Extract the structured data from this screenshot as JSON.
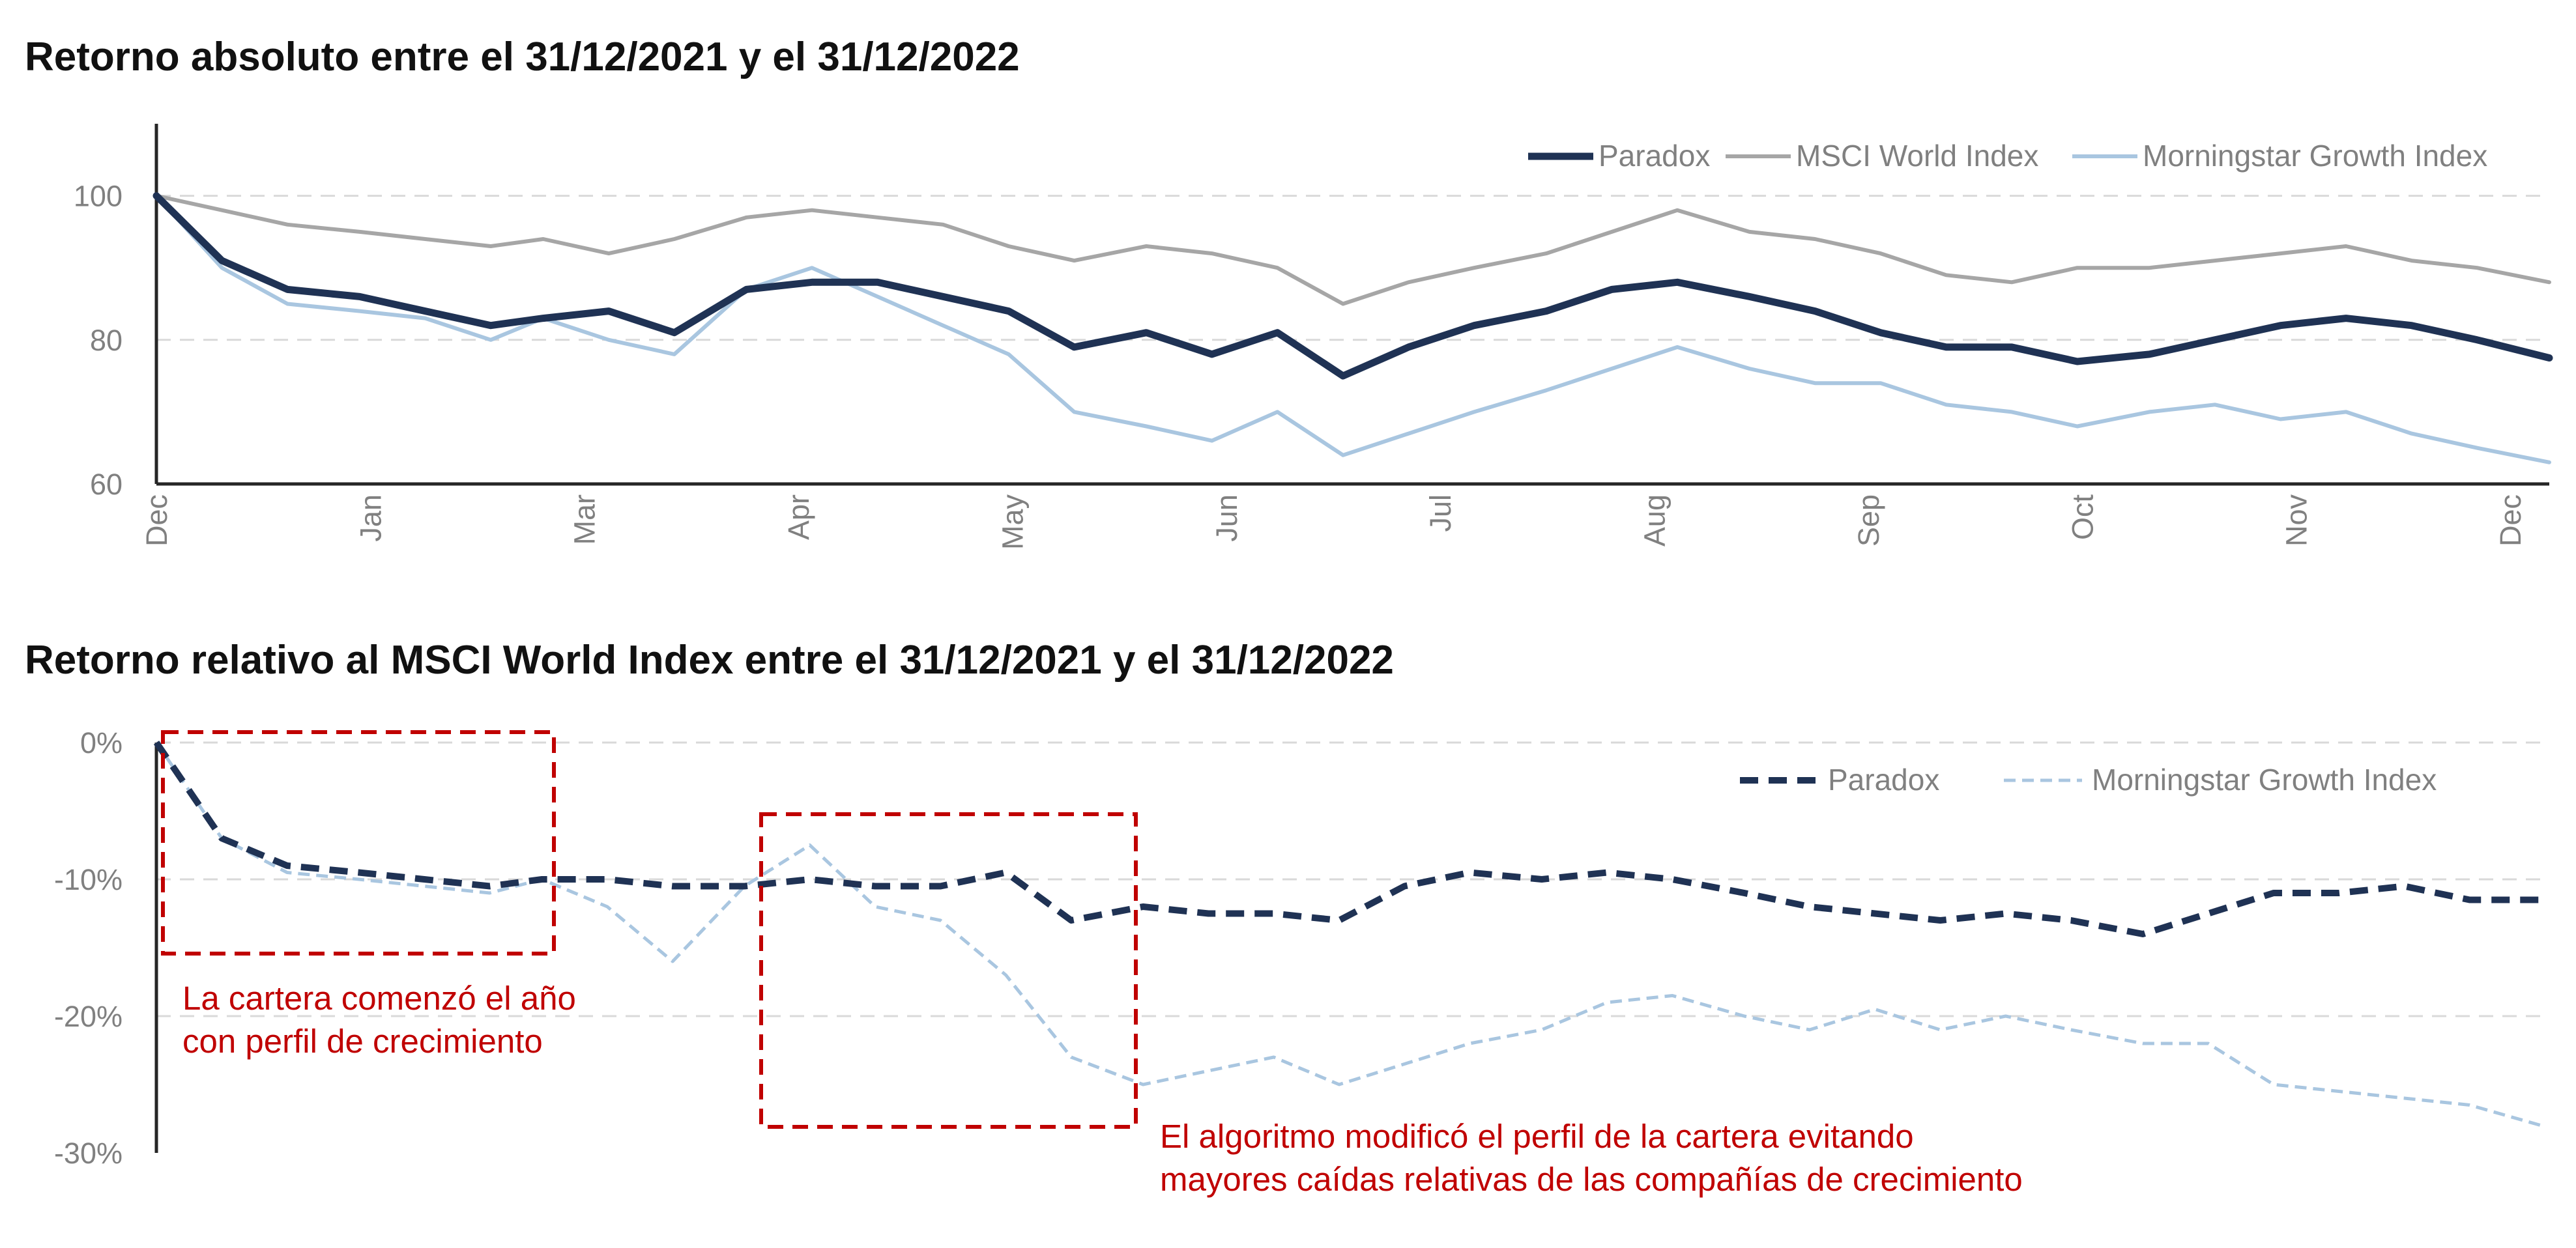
{
  "chart_data": [
    {
      "type": "line",
      "title": "Retorno absoluto entre el 31/12/2021 y el 31/12/2022",
      "xlabel": "",
      "ylabel": "",
      "x_tick_labels": [
        "Dec",
        "Jan",
        "Mar",
        "Apr",
        "May",
        "Jun",
        "Jul",
        "Aug",
        "Sep",
        "Oct",
        "Nov",
        "Dec"
      ],
      "y_ticks": [
        "60",
        "80",
        "100"
      ],
      "ylim": [
        60,
        110
      ],
      "grid": "horizontal dashed",
      "legend_position": "top-right",
      "x": [
        "2021-12-31",
        "2022-01-10",
        "2022-01-20",
        "2022-01-31",
        "2022-02-10",
        "2022-02-20",
        "2022-02-28",
        "2022-03-10",
        "2022-03-20",
        "2022-03-31",
        "2022-04-10",
        "2022-04-20",
        "2022-04-30",
        "2022-05-10",
        "2022-05-20",
        "2022-05-31",
        "2022-06-10",
        "2022-06-20",
        "2022-06-30",
        "2022-07-10",
        "2022-07-20",
        "2022-07-31",
        "2022-08-10",
        "2022-08-20",
        "2022-08-31",
        "2022-09-10",
        "2022-09-20",
        "2022-09-30",
        "2022-10-10",
        "2022-10-20",
        "2022-10-31",
        "2022-11-10",
        "2022-11-20",
        "2022-11-30",
        "2022-12-10",
        "2022-12-20",
        "2022-12-31"
      ],
      "series": [
        {
          "name": "Paradox",
          "color": "#1f3254",
          "style": "solid-thick",
          "values": [
            100,
            91,
            87,
            86,
            84,
            82,
            83,
            84,
            81,
            87,
            88,
            88,
            86,
            84,
            79,
            81,
            78,
            81,
            75,
            79,
            82,
            84,
            87,
            88,
            86,
            84,
            81,
            79,
            79,
            77,
            78,
            80,
            82,
            83,
            82,
            80,
            77.5
          ]
        },
        {
          "name": "MSCI World Index",
          "color": "#a6a6a6",
          "style": "solid",
          "values": [
            100,
            98,
            96,
            95,
            94,
            93,
            94,
            92,
            94,
            97,
            98,
            97,
            96,
            93,
            91,
            93,
            92,
            90,
            85,
            88,
            90,
            92,
            95,
            98,
            95,
            94,
            92,
            89,
            88,
            90,
            90,
            91,
            92,
            93,
            91,
            90,
            88
          ]
        },
        {
          "name": "Morningstar Growth Index",
          "color": "#a9c6e0",
          "style": "solid",
          "values": [
            100,
            90,
            85,
            84,
            83,
            80,
            83,
            80,
            78,
            87,
            90,
            86,
            82,
            78,
            70,
            68,
            66,
            70,
            64,
            67,
            70,
            73,
            76,
            79,
            76,
            74,
            74,
            71,
            70,
            68,
            70,
            71,
            69,
            70,
            67,
            65,
            63
          ]
        }
      ]
    },
    {
      "type": "line",
      "title": "Retorno relativo al MSCI World Index entre el 31/12/2021 y el 31/12/2022",
      "xlabel": "",
      "ylabel": "",
      "y_ticks": [
        "0%",
        "-10%",
        "-20%",
        "-30%"
      ],
      "ylim": [
        -30,
        0
      ],
      "grid": "horizontal dashed",
      "legend_position": "top-right",
      "x": [
        "2021-12-31",
        "2022-01-10",
        "2022-01-20",
        "2022-01-31",
        "2022-02-10",
        "2022-02-20",
        "2022-02-28",
        "2022-03-10",
        "2022-03-20",
        "2022-03-31",
        "2022-04-10",
        "2022-04-20",
        "2022-04-30",
        "2022-05-10",
        "2022-05-20",
        "2022-05-31",
        "2022-06-10",
        "2022-06-20",
        "2022-06-30",
        "2022-07-10",
        "2022-07-20",
        "2022-07-31",
        "2022-08-10",
        "2022-08-20",
        "2022-08-31",
        "2022-09-10",
        "2022-09-20",
        "2022-09-30",
        "2022-10-10",
        "2022-10-20",
        "2022-10-31",
        "2022-11-10",
        "2022-11-20",
        "2022-11-30",
        "2022-12-10",
        "2022-12-20",
        "2022-12-31"
      ],
      "series": [
        {
          "name": "Paradox",
          "color": "#1f3254",
          "style": "dashed-thick",
          "values": [
            0,
            -7,
            -9,
            -9.5,
            -10,
            -10.5,
            -10,
            -10,
            -10.5,
            -10.5,
            -10,
            -10.5,
            -10.5,
            -9.5,
            -13,
            -12,
            -12.5,
            -12.5,
            -13,
            -10.5,
            -9.5,
            -10,
            -9.5,
            -10,
            -11,
            -12,
            -12.5,
            -13,
            -12.5,
            -13,
            -14,
            -12.5,
            -11,
            -11,
            -10.5,
            -11.5,
            -11.5
          ]
        },
        {
          "name": "Morningstar Growth Index",
          "color": "#a9c6e0",
          "style": "dashed",
          "values": [
            0,
            -7,
            -9.5,
            -10,
            -10.5,
            -11,
            -10,
            -12,
            -16,
            -10.5,
            -7.5,
            -12,
            -13,
            -17,
            -23,
            -25,
            -24,
            -23,
            -25,
            -23.5,
            -22,
            -21,
            -19,
            -18.5,
            -20,
            -21,
            -19.5,
            -21,
            -20,
            -21,
            -22,
            -22,
            -25,
            -25.5,
            -26,
            -26.5,
            -28
          ]
        }
      ],
      "annotations": [
        {
          "text_lines": [
            "La cartera comenzó el año",
            "con perfil de crecimiento"
          ],
          "color": "#c00000",
          "box_style": "dashed"
        },
        {
          "text_lines": [
            "El algoritmo modificó el perfil de la cartera evitando",
            "mayores caídas relativas de las compañías de crecimiento"
          ],
          "color": "#c00000",
          "box_style": "dashed"
        }
      ]
    }
  ]
}
